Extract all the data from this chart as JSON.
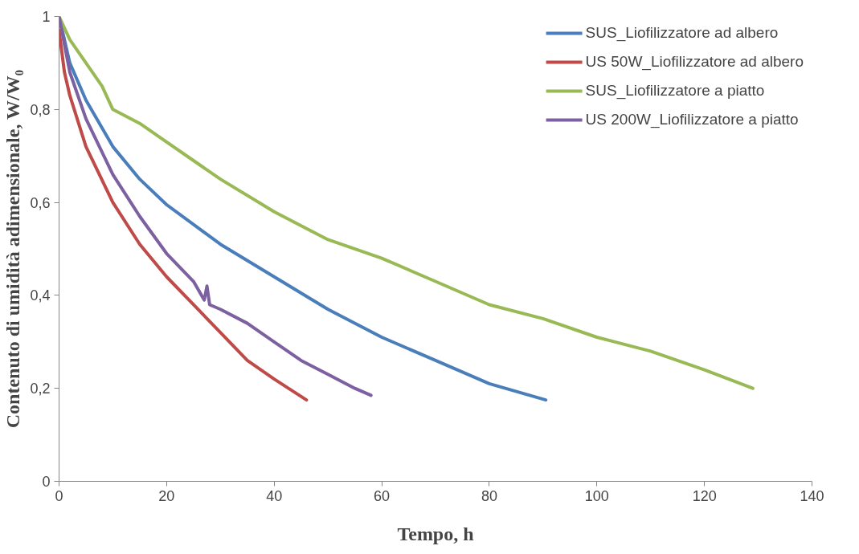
{
  "chart_data": {
    "type": "line",
    "xlabel": "Tempo, h",
    "ylabel": "Contenuto di umidità adimensionale, W/W₀",
    "xlim": [
      0,
      140
    ],
    "xticks": [
      0,
      20,
      40,
      60,
      80,
      100,
      120,
      140
    ],
    "ylim": [
      0,
      1
    ],
    "yticks": [
      0,
      {
        "value": 0.2,
        "label": "0,2"
      },
      {
        "value": 0.4,
        "label": "0,4"
      },
      {
        "value": 0.6,
        "label": "0,6"
      },
      {
        "value": 0.8,
        "label": "0,8"
      },
      1
    ],
    "grid": false,
    "legend": "top right",
    "marker": "none",
    "line_style": "solid",
    "series": [
      {
        "name": "SUS_Liofilizzatore ad albero",
        "color": "#4a7ebb",
        "x": [
          0,
          2,
          5,
          10,
          15,
          20,
          30,
          40,
          50,
          60,
          70,
          80,
          90.5
        ],
        "values": [
          1,
          0.9,
          0.82,
          0.72,
          0.65,
          0.595,
          0.51,
          0.44,
          0.37,
          0.31,
          0.26,
          0.21,
          0.175
        ]
      },
      {
        "name": "US 50W_Liofilizzatore ad albero",
        "color": "#be4b48",
        "x": [
          0,
          1,
          2,
          5,
          10,
          15,
          20,
          25,
          30,
          35,
          40,
          46
        ],
        "values": [
          0.97,
          0.88,
          0.83,
          0.72,
          0.6,
          0.51,
          0.44,
          0.38,
          0.32,
          0.26,
          0.22,
          0.175
        ]
      },
      {
        "name": "SUS_Liofilizzatore a piatto",
        "color": "#98b954",
        "x": [
          0,
          2,
          5,
          8,
          10,
          15,
          20,
          25,
          30,
          40,
          50,
          60,
          70,
          80,
          90,
          100,
          110,
          120,
          129
        ],
        "values": [
          1,
          0.95,
          0.9,
          0.85,
          0.8,
          0.77,
          0.73,
          0.69,
          0.65,
          0.58,
          0.52,
          0.48,
          0.43,
          0.38,
          0.35,
          0.31,
          0.28,
          0.24,
          0.2
        ]
      },
      {
        "name": "US 200W_Liofilizzatore a piatto",
        "color": "#7d60a0",
        "x": [
          0,
          2,
          5,
          10,
          15,
          20,
          25,
          27,
          27.5,
          28,
          30,
          35,
          40,
          45,
          50,
          55,
          58
        ],
        "values": [
          1,
          0.88,
          0.78,
          0.66,
          0.57,
          0.49,
          0.43,
          0.39,
          0.42,
          0.38,
          0.37,
          0.34,
          0.3,
          0.26,
          0.23,
          0.2,
          0.185
        ]
      }
    ]
  }
}
